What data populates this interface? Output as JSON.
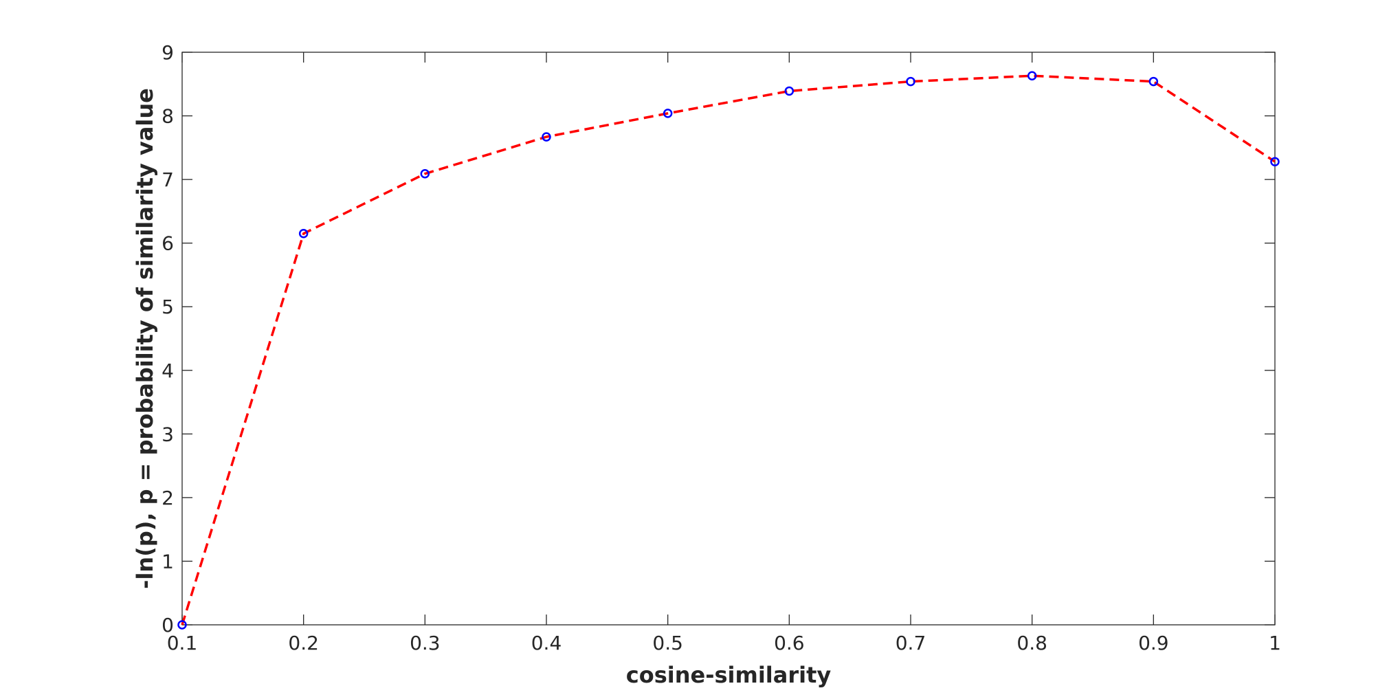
{
  "chart_data": {
    "type": "line",
    "title": "",
    "xlabel": "cosine-similarity",
    "ylabel": "-ln(p), p = probability of similarity value",
    "xlim": [
      0.1,
      1
    ],
    "ylim": [
      0,
      9
    ],
    "xticks": [
      "0.1",
      "0.2",
      "0.3",
      "0.4",
      "0.5",
      "0.6",
      "0.7",
      "0.8",
      "0.9",
      "1"
    ],
    "yticks": [
      "0",
      "1",
      "2",
      "3",
      "4",
      "5",
      "6",
      "7",
      "8",
      "9"
    ],
    "grid": false,
    "legend": "none",
    "series": [
      {
        "x": [
          0.1,
          0.2,
          0.3,
          0.4,
          0.5,
          0.6,
          0.7,
          0.8,
          0.9,
          1.0
        ],
        "y": [
          0.0,
          6.15,
          7.09,
          7.67,
          8.04,
          8.39,
          8.54,
          8.63,
          8.54,
          7.28
        ],
        "line_style": "dashed",
        "line_color": "#ff0000",
        "marker": "circle",
        "marker_color": "#0000ff"
      }
    ]
  }
}
